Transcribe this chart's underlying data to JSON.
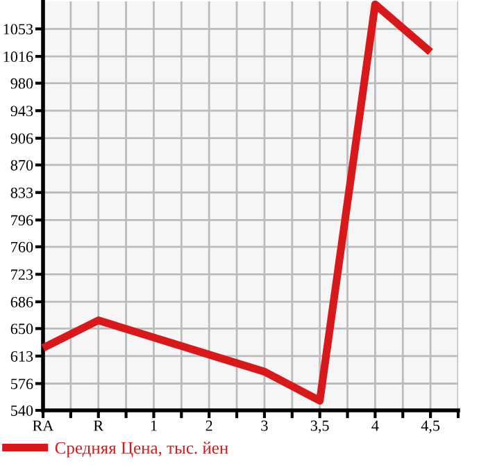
{
  "chart_data": {
    "type": "line",
    "categories": [
      "RA",
      "R",
      "1",
      "2",
      "3",
      "3,5",
      "4",
      "4,5"
    ],
    "series": [
      {
        "name": "Средняя Цена, тыс. йен",
        "color": "#d7191c",
        "values": [
          624,
          661,
          638,
          615,
          592,
          553,
          1086,
          1022
        ]
      }
    ],
    "ylim": [
      540,
      1090
    ],
    "yticks": [
      540,
      576,
      613,
      650,
      686,
      723,
      760,
      796,
      833,
      870,
      906,
      943,
      980,
      1016,
      1053
    ],
    "grid": true,
    "legend": "bottom",
    "marker": "none",
    "line_style": "solid"
  }
}
